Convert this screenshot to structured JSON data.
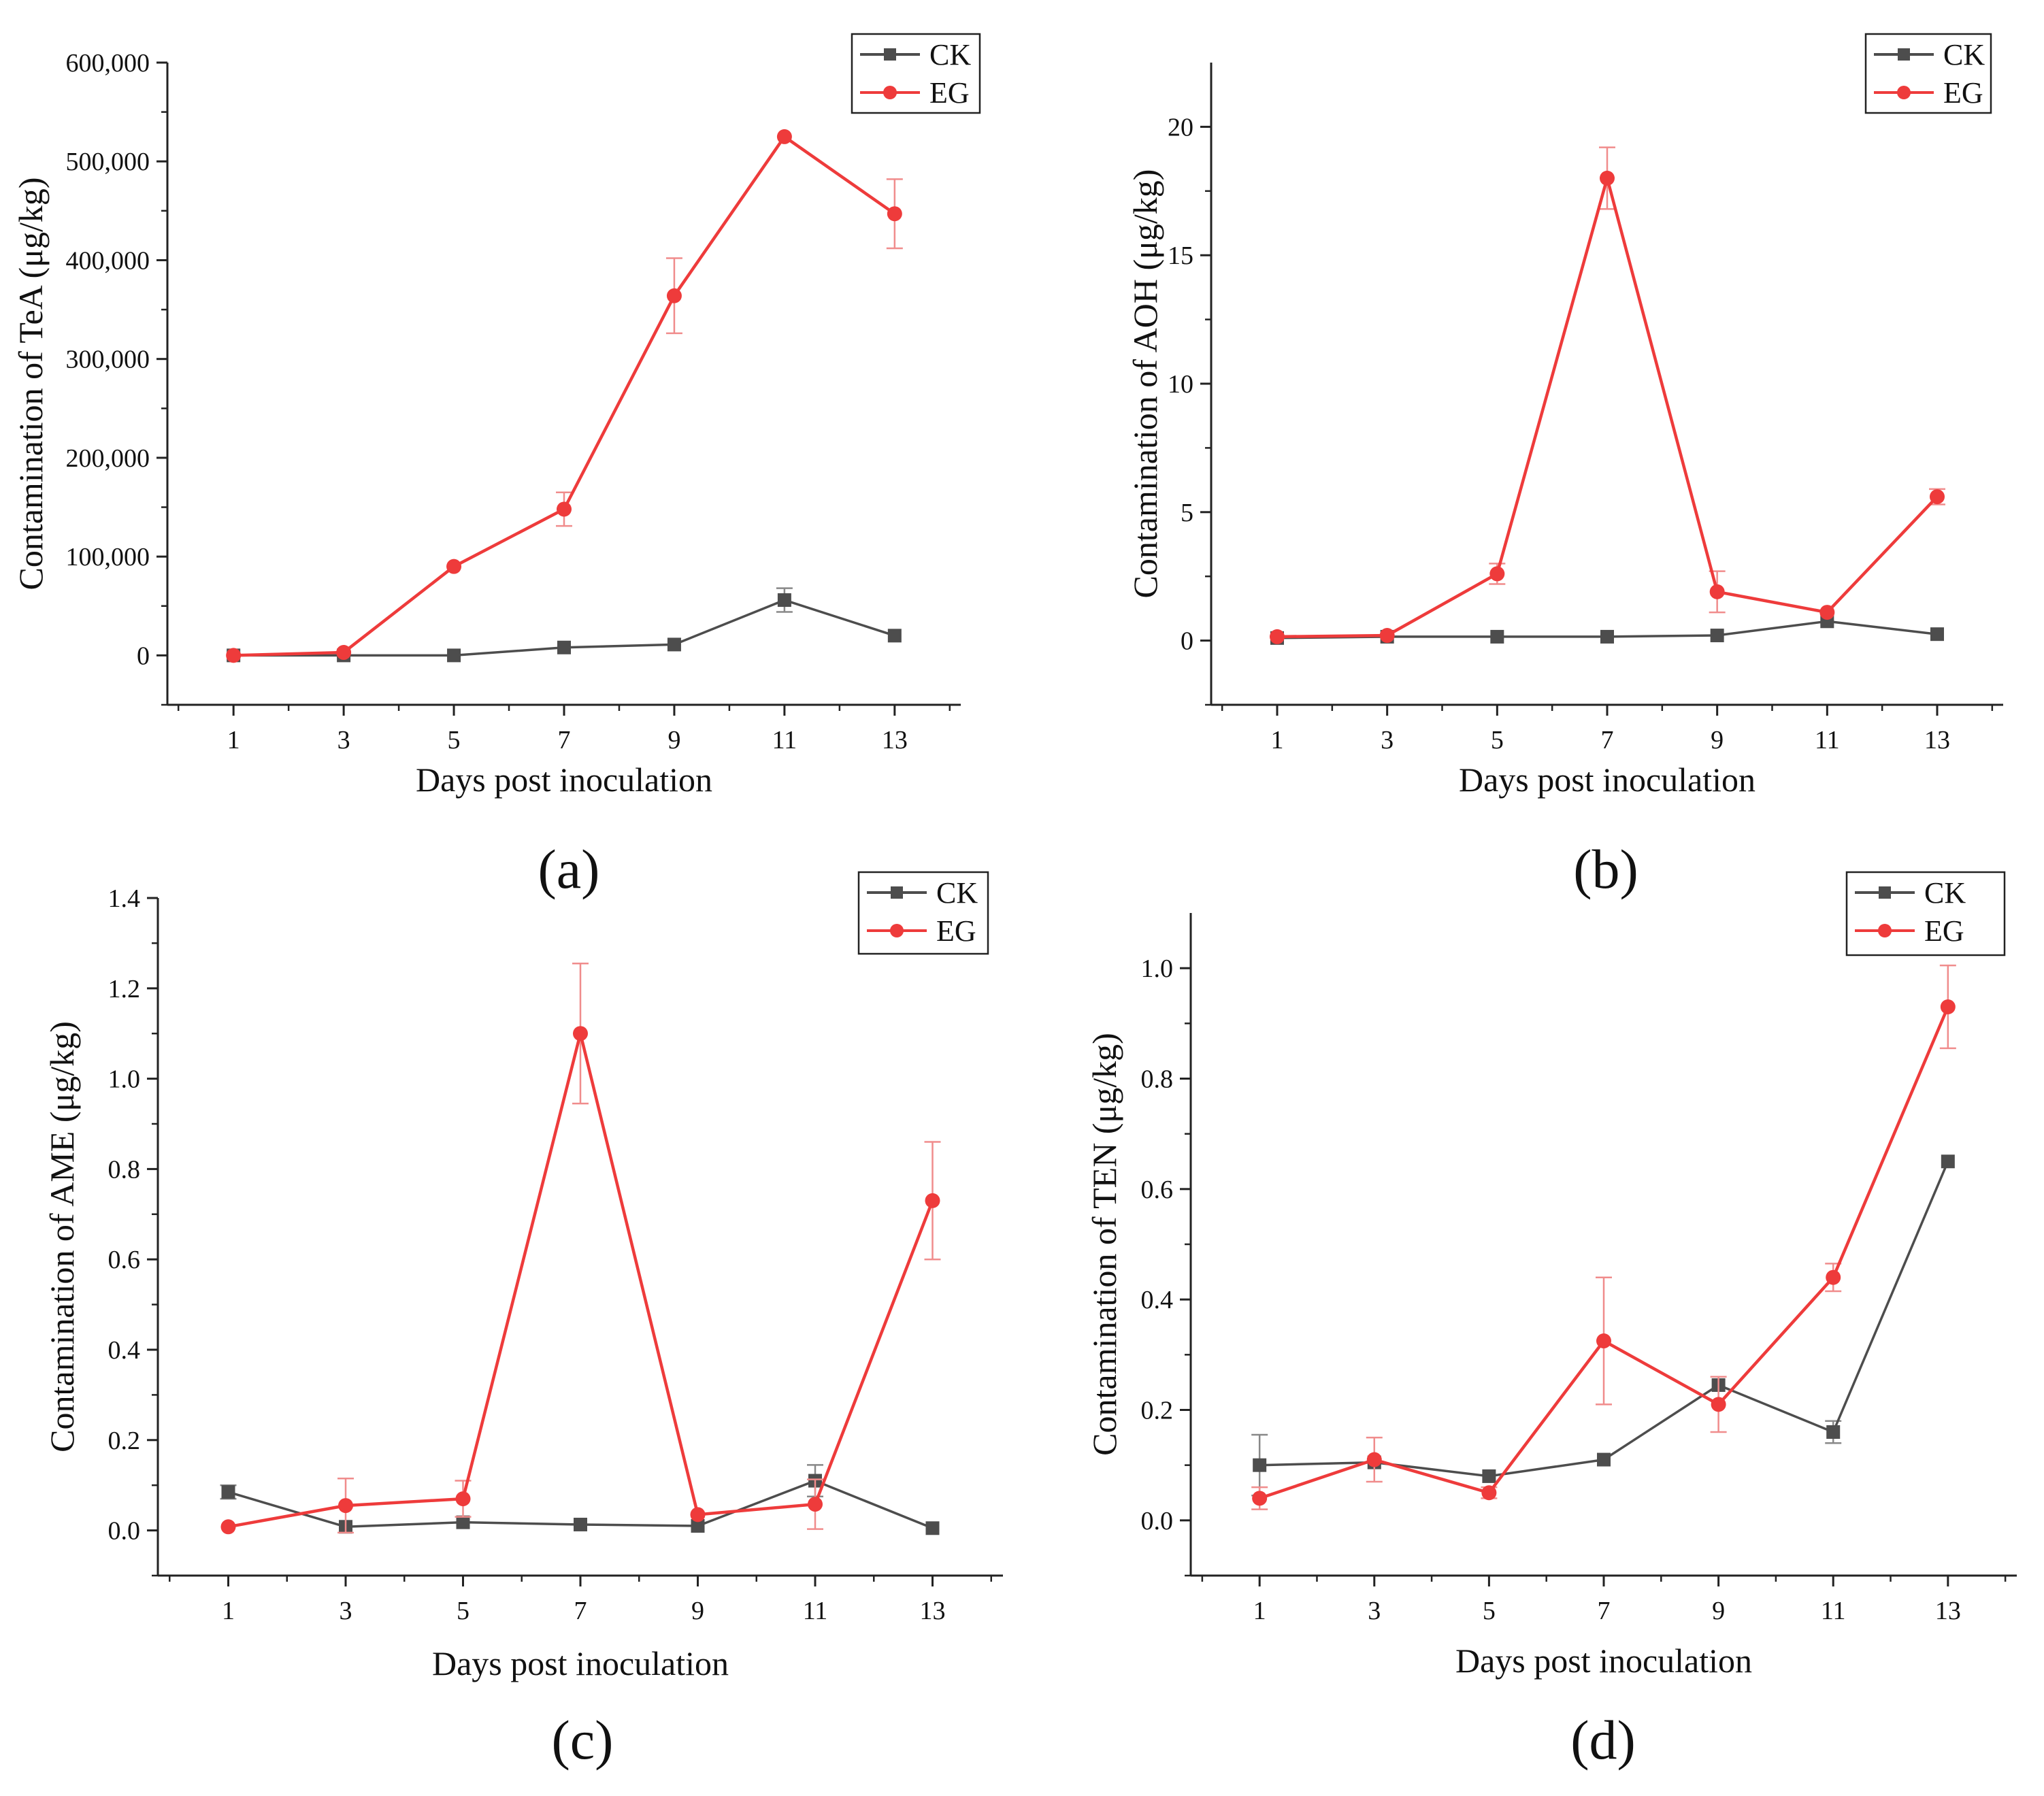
{
  "figure": {
    "panels": [
      {
        "id": "a",
        "label": "(a)"
      },
      {
        "id": "b",
        "label": "(b)"
      },
      {
        "id": "c",
        "label": "(c)"
      },
      {
        "id": "d",
        "label": "(d)"
      }
    ]
  },
  "colors": {
    "CK": "#4d4d4d",
    "EG": "#ee3b3b",
    "EG_error": "#f08c8c",
    "CK_error": "#888888",
    "axis": "#222222"
  },
  "chart_data": [
    {
      "type": "line",
      "panel": "(a)",
      "xlabel": "Days post inoculation",
      "ylabel": "Contamination of TeA (μg/kg)",
      "x": [
        1,
        3,
        5,
        7,
        9,
        11,
        13
      ],
      "xlim": [
        -0.2,
        14.2
      ],
      "ylim": [
        -50000,
        600000
      ],
      "yticks": [
        0,
        100000,
        200000,
        300000,
        400000,
        500000,
        600000
      ],
      "ytick_labels": [
        "0",
        "100,000",
        "200,000",
        "300,000",
        "400,000",
        "500,000",
        "600,000"
      ],
      "xtick_labels": [
        "1",
        "3",
        "5",
        "7",
        "9",
        "11",
        "13"
      ],
      "legend": "top-right",
      "series": [
        {
          "name": "CK",
          "marker": "square",
          "values": [
            0,
            0,
            0,
            8000,
            11000,
            56000,
            20000
          ],
          "errors": [
            0,
            0,
            0,
            0,
            0,
            12000,
            0
          ]
        },
        {
          "name": "EG",
          "marker": "circle",
          "values": [
            0,
            3000,
            90000,
            148000,
            364000,
            525000,
            447000
          ],
          "errors": [
            0,
            0,
            0,
            17000,
            38000,
            0,
            35000
          ]
        }
      ]
    },
    {
      "type": "line",
      "panel": "(b)",
      "xlabel": "Days post inoculation",
      "ylabel": "Contamination of AOH (μg/kg)",
      "x": [
        1,
        3,
        5,
        7,
        9,
        11,
        13
      ],
      "xlim": [
        -0.2,
        14.2
      ],
      "ylim": [
        -2.5,
        22.5
      ],
      "yticks": [
        0,
        5,
        10,
        15,
        20
      ],
      "ytick_labels": [
        "0",
        "5",
        "10",
        "15",
        "20"
      ],
      "xtick_labels": [
        "1",
        "3",
        "5",
        "7",
        "9",
        "11",
        "13"
      ],
      "legend": "top-right",
      "series": [
        {
          "name": "CK",
          "marker": "square",
          "values": [
            0.1,
            0.15,
            0.15,
            0.15,
            0.2,
            0.75,
            0.25
          ],
          "errors": [
            0,
            0,
            0,
            0,
            0,
            0,
            0
          ]
        },
        {
          "name": "EG",
          "marker": "circle",
          "values": [
            0.15,
            0.2,
            2.6,
            18.0,
            1.9,
            1.1,
            5.6
          ],
          "errors": [
            0,
            0,
            0.4,
            1.2,
            0.8,
            0,
            0.3
          ]
        }
      ]
    },
    {
      "type": "line",
      "panel": "(c)",
      "xlabel": "Days post inoculation",
      "ylabel": "Contamination of AME (μg/kg)",
      "x": [
        1,
        3,
        5,
        7,
        9,
        11,
        13
      ],
      "xlim": [
        -0.2,
        14.2
      ],
      "ylim": [
        -0.1,
        1.4
      ],
      "yticks": [
        0,
        0.2,
        0.4,
        0.6,
        0.8,
        1.0,
        1.2,
        1.4
      ],
      "ytick_labels": [
        "0.0",
        "0.2",
        "0.4",
        "0.6",
        "0.8",
        "1.0",
        "1.2",
        "1.4"
      ],
      "xtick_labels": [
        "1",
        "3",
        "5",
        "7",
        "9",
        "11",
        "13"
      ],
      "legend": "top-right",
      "series": [
        {
          "name": "CK",
          "marker": "square",
          "values": [
            0.085,
            0.008,
            0.018,
            0.013,
            0.01,
            0.11,
            0.005
          ],
          "errors": [
            0.015,
            0,
            0,
            0,
            0,
            0.035,
            0
          ]
        },
        {
          "name": "EG",
          "marker": "circle",
          "values": [
            0.008,
            0.055,
            0.07,
            1.1,
            0.035,
            0.058,
            0.73
          ],
          "errors": [
            0,
            0.06,
            0.04,
            0.155,
            0,
            0.055,
            0.13
          ]
        }
      ]
    },
    {
      "type": "line",
      "panel": "(d)",
      "xlabel": "Days post inoculation",
      "ylabel": "Contamination of TEN (μg/kg)",
      "x": [
        1,
        3,
        5,
        7,
        9,
        11,
        13
      ],
      "xlim": [
        -0.2,
        14.2
      ],
      "ylim": [
        -0.1,
        1.1
      ],
      "yticks": [
        0,
        0.2,
        0.4,
        0.6,
        0.8,
        1.0
      ],
      "ytick_labels": [
        "0.0",
        "0.2",
        "0.4",
        "0.6",
        "0.8",
        "1.0"
      ],
      "xtick_labels": [
        "1",
        "3",
        "5",
        "7",
        "9",
        "11",
        "13"
      ],
      "legend": "top-right",
      "series": [
        {
          "name": "CK",
          "marker": "square",
          "values": [
            0.1,
            0.105,
            0.08,
            0.11,
            0.245,
            0.16,
            0.65
          ],
          "errors": [
            0.055,
            0,
            0,
            0,
            0,
            0.02,
            0
          ]
        },
        {
          "name": "EG",
          "marker": "circle",
          "values": [
            0.04,
            0.11,
            0.05,
            0.325,
            0.21,
            0.44,
            0.93
          ],
          "errors": [
            0.02,
            0.04,
            0.01,
            0.115,
            0.05,
            0.025,
            0.075
          ]
        }
      ]
    }
  ]
}
